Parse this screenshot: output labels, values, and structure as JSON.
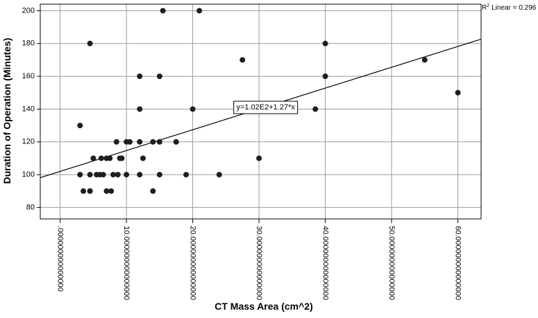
{
  "chart_data": {
    "type": "scatter",
    "title": "",
    "xlabel": "CT Mass Area (cm^2)",
    "ylabel": "Duration of Operation (Minutes)",
    "xlim": [
      -3,
      63.5
    ],
    "ylim": [
      73,
      204
    ],
    "x_ticks": [
      0,
      10,
      20,
      30,
      40,
      50,
      60
    ],
    "x_tick_labels": [
      ".000000000000000",
      "10.000000000000000",
      "20.000000000000000",
      "30.000000000000000",
      "40.000000000000000",
      "50.000000000000000",
      "60.000000000000000"
    ],
    "y_ticks": [
      80,
      100,
      120,
      140,
      160,
      180,
      200
    ],
    "y_tick_labels": [
      "80",
      "100",
      "120",
      "140",
      "160",
      "180",
      "200"
    ],
    "grid": true,
    "points": [
      {
        "x": 3,
        "y": 130
      },
      {
        "x": 3,
        "y": 100
      },
      {
        "x": 3.5,
        "y": 90
      },
      {
        "x": 4.5,
        "y": 180
      },
      {
        "x": 4.5,
        "y": 100
      },
      {
        "x": 4.5,
        "y": 90
      },
      {
        "x": 4.5,
        "y": 90
      },
      {
        "x": 5,
        "y": 110
      },
      {
        "x": 5.5,
        "y": 100
      },
      {
        "x": 6,
        "y": 100
      },
      {
        "x": 6.2,
        "y": 110
      },
      {
        "x": 6.5,
        "y": 100
      },
      {
        "x": 7,
        "y": 110
      },
      {
        "x": 7,
        "y": 90
      },
      {
        "x": 7.5,
        "y": 110
      },
      {
        "x": 7.7,
        "y": 90
      },
      {
        "x": 8,
        "y": 100
      },
      {
        "x": 8.5,
        "y": 120
      },
      {
        "x": 8.7,
        "y": 100
      },
      {
        "x": 9,
        "y": 110
      },
      {
        "x": 9.3,
        "y": 110
      },
      {
        "x": 10,
        "y": 120
      },
      {
        "x": 10,
        "y": 100
      },
      {
        "x": 10.5,
        "y": 120
      },
      {
        "x": 12,
        "y": 160
      },
      {
        "x": 12,
        "y": 140
      },
      {
        "x": 12,
        "y": 120
      },
      {
        "x": 12,
        "y": 100
      },
      {
        "x": 12.5,
        "y": 110
      },
      {
        "x": 14,
        "y": 120
      },
      {
        "x": 14,
        "y": 90
      },
      {
        "x": 15,
        "y": 160
      },
      {
        "x": 15,
        "y": 120
      },
      {
        "x": 15,
        "y": 100
      },
      {
        "x": 15.5,
        "y": 200
      },
      {
        "x": 17.5,
        "y": 120
      },
      {
        "x": 19,
        "y": 100
      },
      {
        "x": 20,
        "y": 140
      },
      {
        "x": 21,
        "y": 200
      },
      {
        "x": 24,
        "y": 100
      },
      {
        "x": 27.5,
        "y": 170
      },
      {
        "x": 30,
        "y": 110
      },
      {
        "x": 38.5,
        "y": 140
      },
      {
        "x": 40,
        "y": 180
      },
      {
        "x": 40,
        "y": 160
      },
      {
        "x": 55,
        "y": 170
      },
      {
        "x": 60,
        "y": 150
      }
    ],
    "fit_line": {
      "intercept": 102,
      "slope": 1.27,
      "label": "y=1.02E2+1.27*x",
      "label_x": 31,
      "label_y": 141
    },
    "r2_label": "Linear = 0.296",
    "r2_prefix": "R",
    "r2_sup": "2",
    "colors": {
      "points": "#1e1e1e",
      "grid": "#999999",
      "line": "#000000"
    }
  }
}
